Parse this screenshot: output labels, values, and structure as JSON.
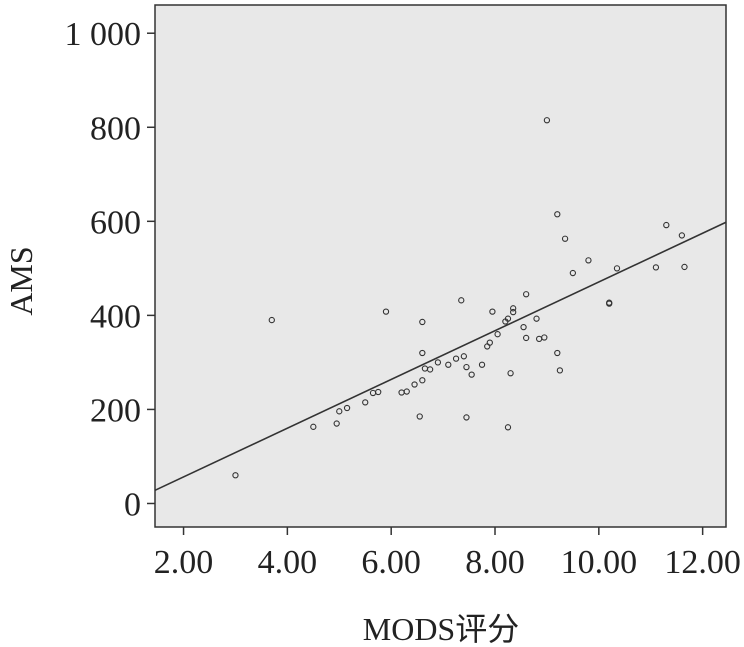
{
  "chart_data": {
    "type": "scatter",
    "title": "",
    "xlabel": "MODS评分",
    "ylabel": "AMS",
    "xlim": [
      1.45,
      12.45
    ],
    "ylim": [
      -50,
      1060
    ],
    "x_ticks": [
      2.0,
      4.0,
      6.0,
      8.0,
      10.0,
      12.0
    ],
    "x_tick_labels": [
      "2.00",
      "4.00",
      "6.00",
      "8.00",
      "10.00",
      "12.00"
    ],
    "y_ticks": [
      0,
      200,
      400,
      600,
      800,
      1000
    ],
    "y_tick_labels": [
      "0",
      "200",
      "400",
      "600",
      "800",
      "1 000"
    ],
    "grid": false,
    "fit_line": {
      "x": [
        1.45,
        12.45
      ],
      "y": [
        28,
        598
      ]
    },
    "series": [
      {
        "points": [
          [
            3.0,
            60
          ],
          [
            3.7,
            390
          ],
          [
            4.5,
            163
          ],
          [
            4.95,
            170
          ],
          [
            5.0,
            196
          ],
          [
            5.15,
            203
          ],
          [
            5.5,
            215
          ],
          [
            5.65,
            235
          ],
          [
            5.75,
            237
          ],
          [
            5.9,
            408
          ],
          [
            6.2,
            236
          ],
          [
            6.3,
            238
          ],
          [
            6.45,
            253
          ],
          [
            6.55,
            185
          ],
          [
            6.6,
            262
          ],
          [
            6.6,
            320
          ],
          [
            6.6,
            386
          ],
          [
            6.65,
            287
          ],
          [
            6.75,
            285
          ],
          [
            6.9,
            300
          ],
          [
            7.1,
            295
          ],
          [
            7.25,
            308
          ],
          [
            7.35,
            432
          ],
          [
            7.4,
            313
          ],
          [
            7.45,
            183
          ],
          [
            7.45,
            290
          ],
          [
            7.55,
            274
          ],
          [
            7.75,
            295
          ],
          [
            7.85,
            334
          ],
          [
            7.9,
            342
          ],
          [
            7.95,
            408
          ],
          [
            8.05,
            360
          ],
          [
            8.2,
            387
          ],
          [
            8.25,
            393
          ],
          [
            8.25,
            162
          ],
          [
            8.3,
            277
          ],
          [
            8.35,
            407
          ],
          [
            8.35,
            415
          ],
          [
            8.55,
            375
          ],
          [
            8.6,
            352
          ],
          [
            8.6,
            445
          ],
          [
            8.8,
            393
          ],
          [
            8.85,
            350
          ],
          [
            8.95,
            353
          ],
          [
            9.0,
            815
          ],
          [
            9.2,
            320
          ],
          [
            9.25,
            283
          ],
          [
            9.35,
            563
          ],
          [
            9.5,
            490
          ],
          [
            9.2,
            615
          ],
          [
            9.8,
            517
          ],
          [
            10.2,
            427
          ],
          [
            10.2,
            425
          ],
          [
            10.35,
            500
          ],
          [
            11.1,
            502
          ],
          [
            11.3,
            592
          ],
          [
            11.6,
            570
          ],
          [
            11.65,
            503
          ]
        ]
      }
    ]
  }
}
